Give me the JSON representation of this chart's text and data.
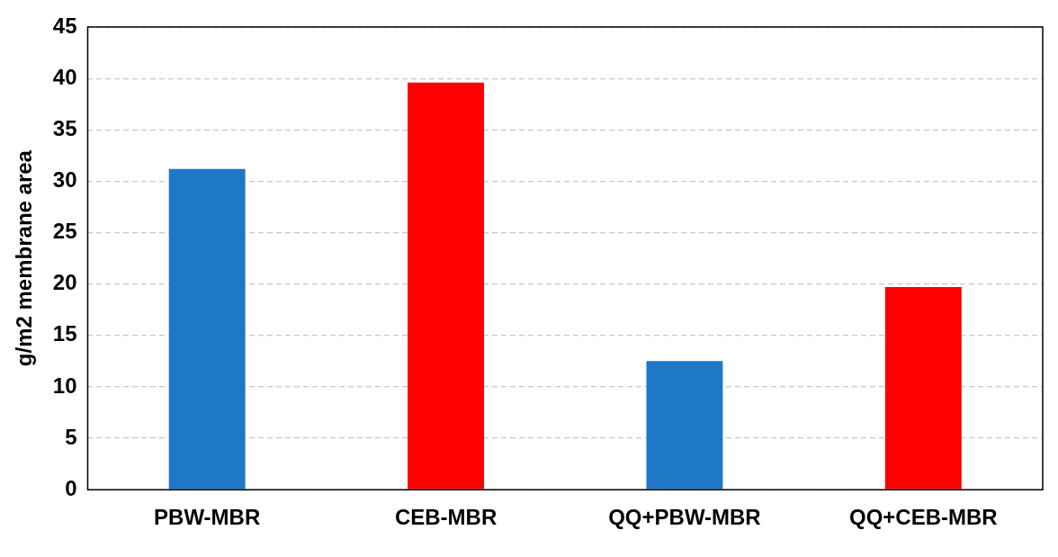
{
  "chart_data": {
    "type": "bar",
    "ylabel": "g/m2 membrane area",
    "categories": [
      "PBW-MBR",
      "CEB-MBR",
      "QQ+PBW-MBR",
      "QQ+CEB-MBR"
    ],
    "values": [
      31.2,
      39.6,
      12.5,
      19.7
    ],
    "colors": [
      "#1f77c8",
      "#ff0000",
      "#1f77c8",
      "#ff0000"
    ],
    "ylim": [
      0,
      45
    ],
    "yticks": [
      0,
      5,
      10,
      15,
      20,
      25,
      30,
      35,
      40,
      45
    ],
    "grid": "y",
    "legend": false
  }
}
